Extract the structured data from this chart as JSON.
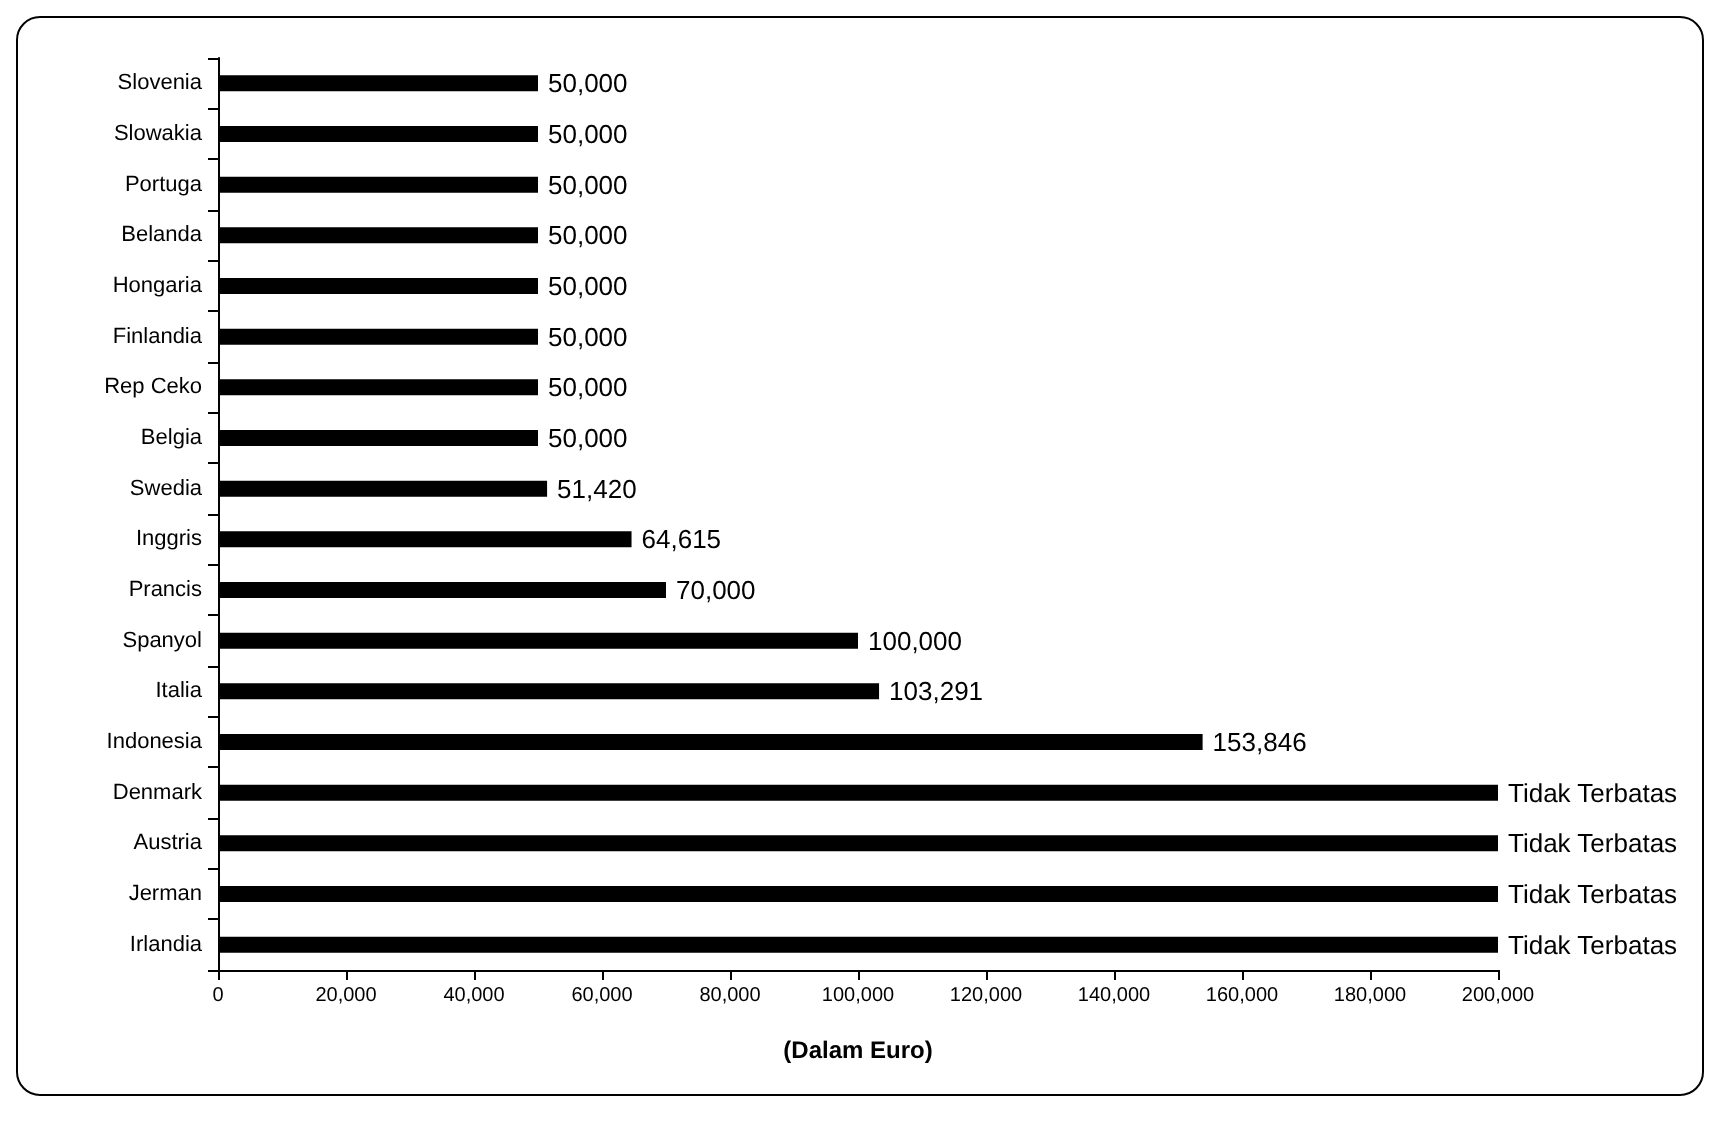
{
  "chart_data": {
    "type": "bar",
    "orientation": "horizontal",
    "xlabel": "(Dalam Euro)",
    "categories": [
      "Slovenia",
      "Slowakia",
      "Portuga",
      "Belanda",
      "Hongaria",
      "Finlandia",
      "Rep Ceko",
      "Belgia",
      "Swedia",
      "Inggris",
      "Prancis",
      "Spanyol",
      "Italia",
      "Indonesia",
      "Denmark",
      "Austria",
      "Jerman",
      "Irlandia"
    ],
    "values": [
      50000,
      50000,
      50000,
      50000,
      50000,
      50000,
      50000,
      50000,
      51420,
      64615,
      70000,
      100000,
      103291,
      153846,
      200000,
      200000,
      200000,
      200000
    ],
    "value_labels": [
      "50,000",
      "50,000",
      "50,000",
      "50,000",
      "50,000",
      "50,000",
      "50,000",
      "50,000",
      "51,420",
      "64,615",
      "70,000",
      "100,000",
      "103,291",
      "153,846",
      "Tidak Terbatas",
      "Tidak Terbatas",
      "Tidak Terbatas",
      "Tidak Terbatas"
    ],
    "color": "#000000",
    "xlim": [
      0,
      200000
    ],
    "xticks": [
      0,
      {
        "value": 20000,
        "label": "20,000"
      },
      {
        "value": 40000,
        "label": "40,000"
      },
      {
        "value": 60000,
        "label": "60,000"
      },
      {
        "value": 80000,
        "label": "80,000"
      },
      {
        "value": 100000,
        "label": "100,000"
      },
      {
        "value": 120000,
        "label": "120,000"
      },
      {
        "value": 140000,
        "label": "140,000"
      },
      {
        "value": 160000,
        "label": "160,000"
      },
      {
        "value": 180000,
        "label": "180,000"
      },
      {
        "value": 200000,
        "label": "200,000"
      }
    ],
    "grid": false
  }
}
